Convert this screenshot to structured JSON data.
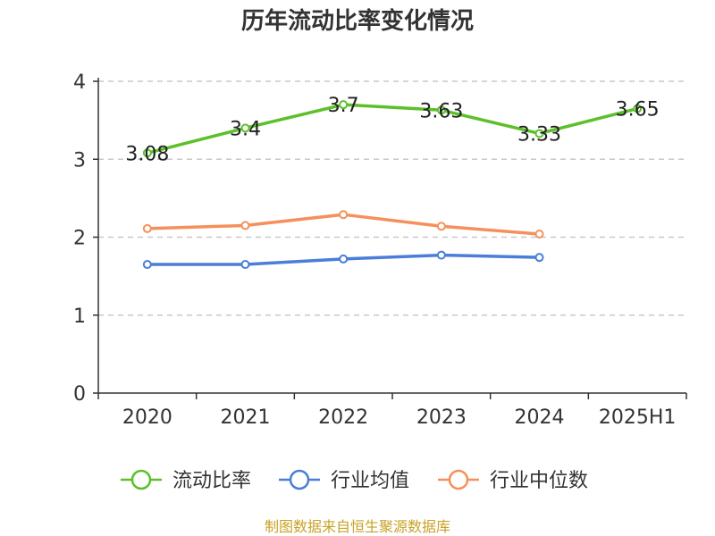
{
  "chart_data": {
    "type": "line",
    "title": "历年流动比率变化情况",
    "categories": [
      "2020",
      "2021",
      "2022",
      "2023",
      "2024",
      "2025H1"
    ],
    "ylim": [
      0,
      4
    ],
    "yticks": [
      "0",
      "1",
      "2",
      "3",
      "4"
    ],
    "grid": true,
    "legend_position": "bottom",
    "series": [
      {
        "name": "流动比率",
        "color": "#5dc02b",
        "values": [
          3.08,
          3.4,
          3.7,
          3.63,
          3.33,
          3.65
        ],
        "labels": [
          "3.08",
          "3.4",
          "3.7",
          "3.63",
          "3.33",
          "3.65"
        ]
      },
      {
        "name": "行业均值",
        "color": "#4a7ed8",
        "values": [
          1.65,
          1.65,
          1.72,
          1.77,
          1.74,
          null
        ]
      },
      {
        "name": "行业中位数",
        "color": "#f5905c",
        "values": [
          2.11,
          2.15,
          2.29,
          2.14,
          2.04,
          null
        ]
      }
    ]
  },
  "source": {
    "text": "制图数据来自恒生聚源数据库",
    "color": "#c9a227"
  }
}
